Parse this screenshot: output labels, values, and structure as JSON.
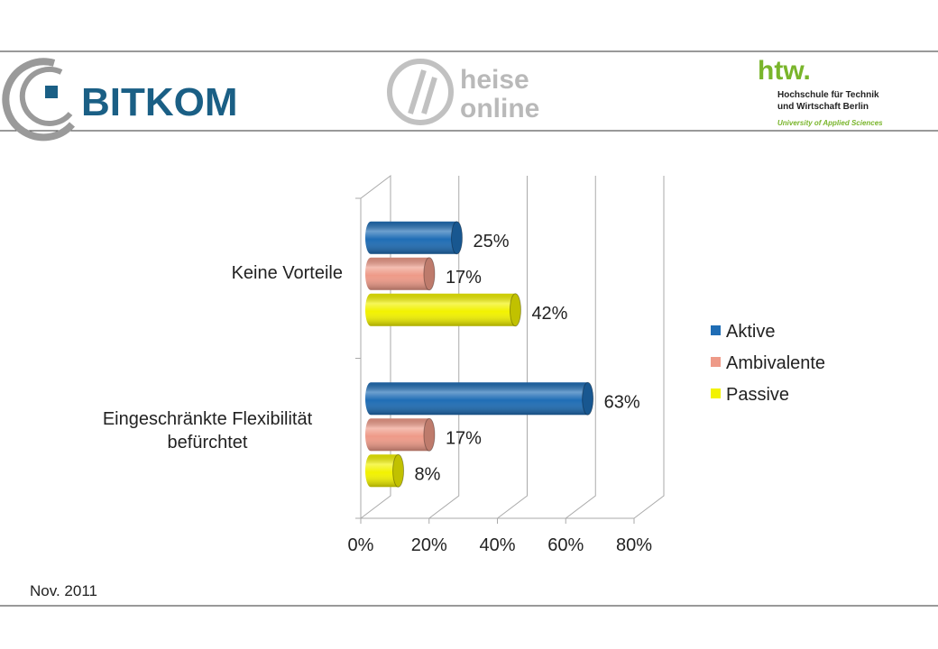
{
  "header": {
    "bitkom": "BITKOM",
    "heise": [
      "heise",
      "online"
    ],
    "htw": "htw.",
    "htw_name": [
      "Hochschule für Technik",
      "und Wirtschaft Berlin"
    ],
    "htw_tagline": "University of Applied Sciences"
  },
  "chart_data": {
    "type": "bar3d",
    "orientation": "horizontal",
    "categories": [
      "Keine Vorteile",
      "Eingeschränkte Flexibilität befürchtet"
    ],
    "series": [
      {
        "name": "Aktive",
        "color": "#1f6db5",
        "values": [
          25,
          63
        ],
        "value_labels": [
          "25%",
          "63%"
        ]
      },
      {
        "name": "Ambivalente",
        "color": "#ee9a88",
        "values": [
          17,
          17
        ],
        "value_labels": [
          "17%",
          "17%"
        ]
      },
      {
        "name": "Passive",
        "color": "#f2f200",
        "values": [
          42,
          8
        ],
        "value_labels": [
          "42%",
          "8%"
        ]
      }
    ],
    "xlim": [
      0,
      80
    ],
    "xticks": [
      {
        "value": 0,
        "label": "0%"
      },
      {
        "value": 20,
        "label": "20%"
      },
      {
        "value": 40,
        "label": "40%"
      },
      {
        "value": 60,
        "label": "60%"
      },
      {
        "value": 80,
        "label": "80%"
      }
    ],
    "grid": true,
    "legend": "right"
  },
  "footer": "Nov. 2011"
}
